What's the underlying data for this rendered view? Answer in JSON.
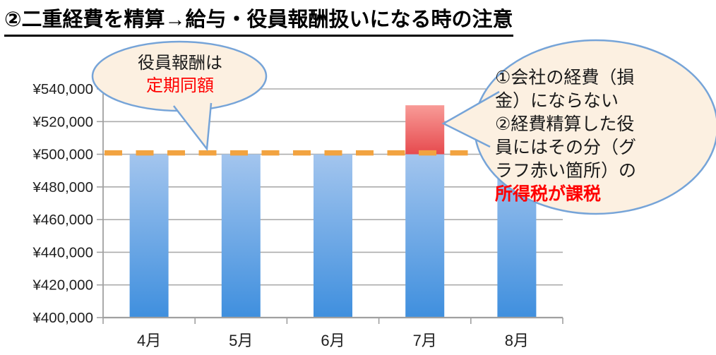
{
  "title": "②二重経費を精算→給与・役員報酬扱いになる時の注意",
  "colors": {
    "red_text": "#FF0000",
    "bubble_fill": "#FCF0E1",
    "bubble_border": "#76A4D8",
    "grid": "#ACACAC",
    "axis": "#A0A0A0",
    "tick_label": "#1f1f1f"
  },
  "chart_data": {
    "type": "bar",
    "stacked": true,
    "categories": [
      "4月",
      "5月",
      "6月",
      "7月",
      "8月"
    ],
    "series": [
      {
        "name": "blue-base",
        "values": [
          500000,
          500000,
          500000,
          500000,
          500000
        ],
        "color_top": "#A3C5EE",
        "color_bottom": "#3F8FDE"
      },
      {
        "name": "red-extra",
        "values": [
          0,
          0,
          0,
          30000,
          0
        ],
        "color_top": "#F89B97",
        "color_bottom": "#E64A4E"
      }
    ],
    "ylim": [
      400000,
      540000
    ],
    "y_ticks": [
      {
        "label": "¥540,000",
        "value": 540000
      },
      {
        "label": "¥520,000",
        "value": 520000
      },
      {
        "label": "¥500,000",
        "value": 500000
      },
      {
        "label": "¥480,000",
        "value": 480000
      },
      {
        "label": "¥460,000",
        "value": 460000
      },
      {
        "label": "¥440,000",
        "value": 440000
      },
      {
        "label": "¥420,000",
        "value": 420000
      },
      {
        "label": "¥400,000",
        "value": 400000
      }
    ],
    "reference_line": {
      "value": 500000,
      "color": "#F2A340",
      "style": "dashed"
    },
    "grid": true,
    "legend": false,
    "xlabel": "",
    "ylabel": ""
  },
  "callout_left": {
    "line1": "役員報酬は",
    "line2": "定期同額"
  },
  "callout_right": {
    "body": "①会社の経費（損\n金）にならない\n②経費精算した役\n員にはその分（グ\nラフ赤い箇所）の",
    "highlight": "所得税が課税"
  }
}
